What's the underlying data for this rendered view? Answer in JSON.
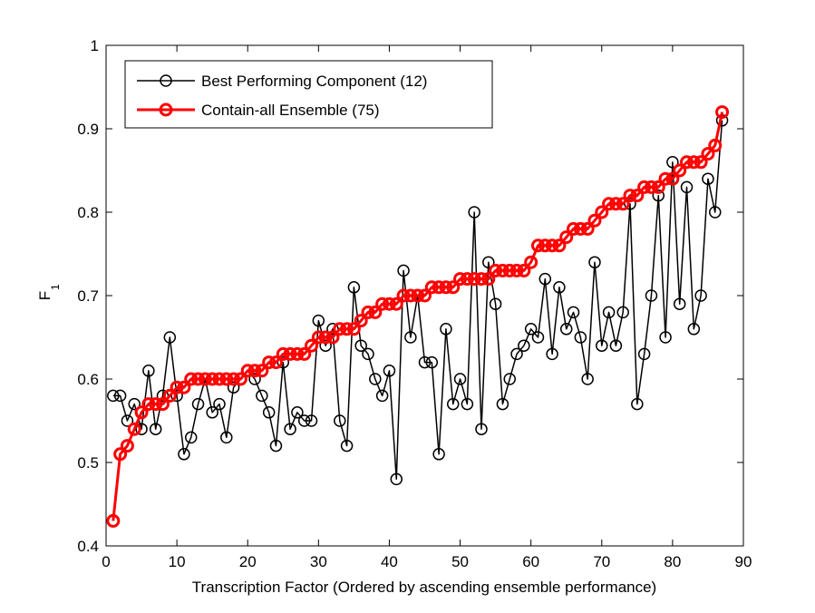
{
  "chart_data": {
    "type": "line",
    "title": "",
    "xlabel": "Transcription Factor (Ordered by ascending ensemble performance)",
    "ylabel_main": "F",
    "ylabel_sub": "1",
    "xlim": [
      0,
      90
    ],
    "ylim": [
      0.4,
      1
    ],
    "xticks": [
      0,
      10,
      20,
      30,
      40,
      50,
      60,
      70,
      80,
      90
    ],
    "yticks": [
      0.4,
      0.5,
      0.6,
      0.7,
      0.8,
      0.9,
      1
    ],
    "ytick_labels": [
      "0.4",
      "0.5",
      "0.6",
      "0.7",
      "0.8",
      "0.9",
      "1"
    ],
    "grid": false,
    "legend_position": "top-left",
    "series": [
      {
        "name": "Best Performing Component (12)",
        "color": "#000000",
        "marker": "circle",
        "x": [
          1,
          2,
          3,
          4,
          5,
          6,
          7,
          8,
          9,
          10,
          11,
          12,
          13,
          14,
          15,
          16,
          17,
          18,
          19,
          20,
          21,
          22,
          23,
          24,
          25,
          26,
          27,
          28,
          29,
          30,
          31,
          32,
          33,
          34,
          35,
          36,
          37,
          38,
          39,
          40,
          41,
          42,
          43,
          44,
          45,
          46,
          47,
          48,
          49,
          50,
          51,
          52,
          53,
          54,
          55,
          56,
          57,
          58,
          59,
          60,
          61,
          62,
          63,
          64,
          65,
          66,
          67,
          68,
          69,
          70,
          71,
          72,
          73,
          74,
          75,
          76,
          77,
          78,
          79,
          80,
          81,
          82,
          83,
          84,
          85,
          86,
          87
        ],
        "values": [
          0.58,
          0.58,
          0.55,
          0.57,
          0.54,
          0.61,
          0.54,
          0.58,
          0.65,
          0.58,
          0.51,
          0.53,
          0.57,
          0.6,
          0.56,
          0.57,
          0.53,
          0.59,
          0.6,
          0.61,
          0.6,
          0.58,
          0.56,
          0.52,
          0.62,
          0.54,
          0.56,
          0.55,
          0.55,
          0.67,
          0.64,
          0.66,
          0.55,
          0.52,
          0.71,
          0.64,
          0.63,
          0.6,
          0.58,
          0.61,
          0.48,
          0.73,
          0.65,
          0.7,
          0.62,
          0.62,
          0.51,
          0.66,
          0.57,
          0.6,
          0.57,
          0.8,
          0.54,
          0.74,
          0.69,
          0.57,
          0.6,
          0.63,
          0.64,
          0.66,
          0.65,
          0.72,
          0.63,
          0.71,
          0.66,
          0.68,
          0.65,
          0.6,
          0.74,
          0.64,
          0.68,
          0.64,
          0.68,
          0.81,
          0.57,
          0.63,
          0.7,
          0.82,
          0.65,
          0.86,
          0.69,
          0.83,
          0.66,
          0.7,
          0.84,
          0.8,
          0.91
        ]
      },
      {
        "name": "Contain-all Ensemble (75)",
        "color": "#ff0000",
        "marker": "circle",
        "x": [
          1,
          2,
          3,
          4,
          5,
          6,
          7,
          8,
          9,
          10,
          11,
          12,
          13,
          14,
          15,
          16,
          17,
          18,
          19,
          20,
          21,
          22,
          23,
          24,
          25,
          26,
          27,
          28,
          29,
          30,
          31,
          32,
          33,
          34,
          35,
          36,
          37,
          38,
          39,
          40,
          41,
          42,
          43,
          44,
          45,
          46,
          47,
          48,
          49,
          50,
          51,
          52,
          53,
          54,
          55,
          56,
          57,
          58,
          59,
          60,
          61,
          62,
          63,
          64,
          65,
          66,
          67,
          68,
          69,
          70,
          71,
          72,
          73,
          74,
          75,
          76,
          77,
          78,
          79,
          80,
          81,
          82,
          83,
          84,
          85,
          86,
          87
        ],
        "values": [
          0.43,
          0.51,
          0.52,
          0.54,
          0.56,
          0.57,
          0.57,
          0.57,
          0.58,
          0.59,
          0.59,
          0.6,
          0.6,
          0.6,
          0.6,
          0.6,
          0.6,
          0.6,
          0.6,
          0.61,
          0.61,
          0.61,
          0.62,
          0.62,
          0.63,
          0.63,
          0.63,
          0.63,
          0.64,
          0.65,
          0.65,
          0.65,
          0.66,
          0.66,
          0.66,
          0.67,
          0.68,
          0.68,
          0.69,
          0.69,
          0.69,
          0.7,
          0.7,
          0.7,
          0.7,
          0.71,
          0.71,
          0.71,
          0.71,
          0.72,
          0.72,
          0.72,
          0.72,
          0.72,
          0.73,
          0.73,
          0.73,
          0.73,
          0.73,
          0.74,
          0.76,
          0.76,
          0.76,
          0.76,
          0.77,
          0.78,
          0.78,
          0.78,
          0.79,
          0.8,
          0.81,
          0.81,
          0.81,
          0.82,
          0.82,
          0.83,
          0.83,
          0.83,
          0.84,
          0.84,
          0.85,
          0.86,
          0.86,
          0.86,
          0.87,
          0.88,
          0.92
        ]
      }
    ]
  }
}
